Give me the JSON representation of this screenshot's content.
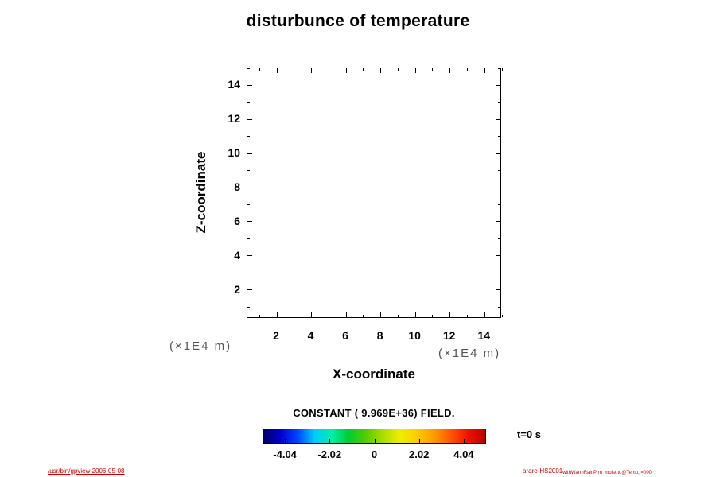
{
  "title": "disturbunce of temperature",
  "axes": {
    "x_label": "X-coordinate",
    "y_label": "Z-coordinate",
    "x_unit": "(×1E4 m)",
    "y_unit": "(×1E4 m)"
  },
  "annotations": {
    "field_text": "CONSTANT ( 9.969E+36) FIELD.",
    "time_text": "t=0 s",
    "footer_left": "/usr/bin/gpview 2006-05-08",
    "footer_right_main": "arare-HS2001",
    "footer_right_sub": "withWarmRainPrm_moistno@Temp,t=000"
  },
  "chart_data": {
    "type": "heatmap",
    "title": "disturbunce of temperature",
    "xlabel": "X-coordinate",
    "ylabel": "Z-coordinate",
    "x_unit": "×1E4 m",
    "y_unit": "×1E4 m",
    "xlim": [
      0.3,
      15.0
    ],
    "ylim": [
      0.3,
      15.0
    ],
    "x_ticks": [
      2,
      4,
      6,
      8,
      10,
      12,
      14
    ],
    "y_ticks": [
      2,
      4,
      6,
      8,
      10,
      12,
      14
    ],
    "grid": false,
    "field": "constant",
    "constant_value": "9.969E+36",
    "data_note": "CONSTANT ( 9.969E+36) FIELD. — field is constant (missing value), so no shading/contours drawn; plot area is empty",
    "time": "t=0 s",
    "colorbar": {
      "orientation": "horizontal",
      "position": "below plot",
      "range": [
        -5.05,
        5.05
      ],
      "ticks": [
        -4.04,
        -2.02,
        0,
        2.02,
        4.04
      ],
      "tick_labels": [
        "-4.04",
        "-2.02",
        "0",
        "2.02",
        "4.04"
      ],
      "palette": [
        "#000066",
        "#0000cc",
        "#0044ff",
        "#00ccff",
        "#00eeaa",
        "#00cc33",
        "#55cc00",
        "#aadd00",
        "#eeee00",
        "#ffcc00",
        "#ff9900",
        "#ff5500",
        "#ee1100",
        "#bb0000"
      ]
    }
  }
}
